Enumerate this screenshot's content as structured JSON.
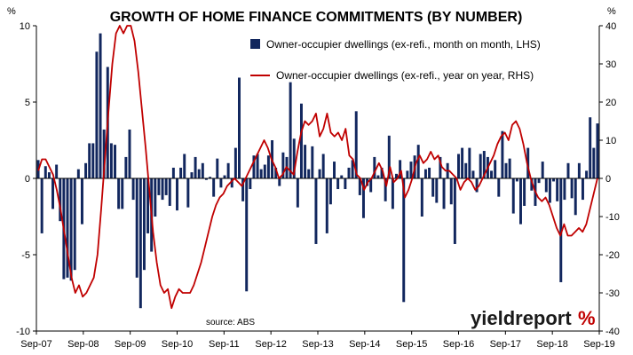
{
  "chart_data": {
    "type": "bar+line",
    "title": "GROWTH OF HOME FINANCE COMMITMENTS (BY NUMBER)",
    "left_axis": {
      "unit": "%",
      "ylim": [
        -10,
        10
      ],
      "ticks": [
        "10",
        "5",
        "0",
        "-5",
        "-10"
      ]
    },
    "right_axis": {
      "unit": "%",
      "ylim": [
        -40,
        40
      ],
      "ticks": [
        "40",
        "30",
        "20",
        "10",
        "0",
        "-10",
        "-20",
        "-30",
        "-40"
      ]
    },
    "x_tick_labels": [
      "Sep-07",
      "Sep-08",
      "Sep-09",
      "Sep-10",
      "Sep-11",
      "Sep-12",
      "Sep-13",
      "Sep-14",
      "Sep-15",
      "Sep-16",
      "Sep-17",
      "Sep-18",
      "Sep-19"
    ],
    "grid": false,
    "legend_position": "top-right",
    "series": [
      {
        "name": "Owner-occupier dwellings (ex-refi., month on month, LHS)",
        "type": "bar",
        "axis": "left",
        "color": "#12275e",
        "values": [
          1.2,
          -3.6,
          0.8,
          0.4,
          -2.0,
          0.9,
          -2.8,
          -6.6,
          -6.5,
          -6.7,
          -6.0,
          0.6,
          -3.0,
          1.0,
          2.3,
          2.3,
          8.3,
          9.5,
          3.2,
          7.3,
          2.3,
          2.2,
          -2.0,
          -2.0,
          1.4,
          3.2,
          -1.4,
          -6.5,
          -8.5,
          -6.0,
          -3.6,
          -4.8,
          -2.5,
          -1.1,
          -1.4,
          -1.1,
          -1.8,
          0.7,
          -2.1,
          0.7,
          1.6,
          -1.9,
          0.4,
          1.4,
          0.6,
          1.0,
          -0.1,
          0.1,
          -1.2,
          1.3,
          -0.6,
          0.2,
          1.0,
          -0.6,
          2.0,
          6.6,
          -1.5,
          -7.4,
          -0.7,
          1.5,
          1.6,
          0.6,
          0.9,
          1.5,
          2.5,
          0.7,
          -0.5,
          1.7,
          1.4,
          6.3,
          2.6,
          -1.9,
          4.9,
          2.2,
          0.6,
          2.1,
          -4.3,
          0.6,
          1.6,
          -3.6,
          -1.7,
          1.1,
          -0.7,
          0.2,
          -0.7,
          0.7,
          1.2,
          4.4,
          -1.1,
          -2.6,
          -0.5,
          -0.9,
          1.4,
          0.2,
          0.7,
          -1.5,
          2.8,
          -2.0,
          0.3,
          1.2,
          -8.1,
          0.5,
          1.1,
          1.5,
          2.2,
          -2.5,
          0.6,
          0.7,
          -1.2,
          -1.6,
          1.4,
          -2.0,
          1.0,
          -1.7,
          -4.3,
          1.6,
          2.0,
          1.0,
          2.0,
          0.5,
          -0.9,
          1.6,
          1.8,
          1.4,
          0.5,
          1.2,
          -1.2,
          3.1,
          1.0,
          1.3,
          -2.3,
          -0.2,
          -3.0,
          -1.8,
          2.0,
          -0.8,
          -1.8,
          -0.3,
          1.1,
          -0.9,
          -1.6,
          -0.2,
          -1.5,
          -6.8,
          -1.4,
          1.0,
          -1.3,
          -2.4,
          1.0,
          -1.4,
          0.5,
          4.0,
          2.0,
          3.6
        ]
      },
      {
        "name": "Owner-occupier dwellings (ex-refi., year on year, RHS)",
        "type": "line",
        "axis": "right",
        "color": "#c00000",
        "values": [
          2.0,
          5.0,
          5.0,
          3.0,
          1.0,
          -3.0,
          -8.0,
          -14.0,
          -20.0,
          -26.0,
          -30.0,
          -28.0,
          -31.0,
          -30.0,
          -28.0,
          -26.0,
          -20.0,
          -8.0,
          5.0,
          18.0,
          30.0,
          38.0,
          40.0,
          38.0,
          40.0,
          40.0,
          36.0,
          28.0,
          18.0,
          8.0,
          -3.0,
          -14.0,
          -22.0,
          -28.0,
          -30.0,
          -29.0,
          -34.0,
          -31.0,
          -29.0,
          -30.0,
          -30.0,
          -30.0,
          -28.0,
          -25.0,
          -22.0,
          -18.0,
          -14.0,
          -10.0,
          -7.0,
          -5.0,
          -4.0,
          -2.0,
          -1.0,
          0.0,
          -1.0,
          -2.0,
          0.0,
          2.0,
          4.0,
          6.0,
          8.0,
          10.0,
          8.0,
          5.0,
          3.0,
          0.0,
          1.0,
          3.0,
          2.0,
          1.0,
          7.0,
          12.0,
          15.0,
          14.0,
          15.0,
          17.0,
          11.0,
          13.0,
          17.0,
          12.0,
          11.0,
          12.0,
          10.0,
          13.0,
          6.0,
          5.0,
          1.0,
          0.0,
          -3.0,
          -1.0,
          0.0,
          2.0,
          4.0,
          2.0,
          -2.0,
          3.0,
          -1.0,
          0.0,
          2.0,
          -5.0,
          -3.0,
          0.0,
          4.0,
          6.0,
          4.0,
          5.0,
          7.0,
          5.0,
          6.0,
          3.0,
          2.0,
          2.0,
          1.0,
          0.0,
          -3.0,
          -1.0,
          0.0,
          -1.0,
          -3.0,
          -2.0,
          0.0,
          2.0,
          4.0,
          6.0,
          9.0,
          11.0,
          12.0,
          10.0,
          14.0,
          15.0,
          13.0,
          9.0,
          4.0,
          0.0,
          -3.0,
          -5.0,
          -6.0,
          -5.0,
          -7.0,
          -10.0,
          -13.0,
          -15.0,
          -12.0,
          -15.0,
          -15.0,
          -14.0,
          -13.0,
          -14.0,
          -12.0,
          -8.0,
          -4.0,
          0.0
        ]
      }
    ],
    "annotations": [
      "source: ABS"
    ],
    "brand": {
      "word": "yieldreport",
      "symbol": "%"
    }
  }
}
